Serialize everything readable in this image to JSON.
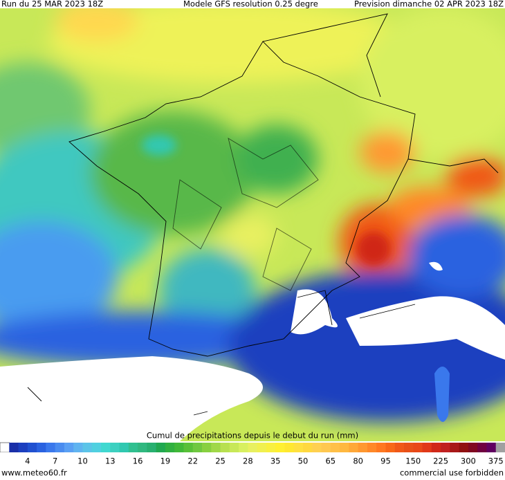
{
  "header": {
    "run": "Run du 25 MAR 2023 18Z",
    "model": "Modele GFS resolution 0.25 degre",
    "forecast": "Prevision dimanche 02 APR 2023 18Z"
  },
  "legend": {
    "title": "Cumul de precipitations depuis le debut du run (mm)",
    "ticks": [
      4,
      7,
      10,
      13,
      16,
      19,
      22,
      25,
      28,
      35,
      50,
      65,
      80,
      95,
      150,
      225,
      300,
      375
    ],
    "colors": [
      "#ffffff",
      "#1a2fa8",
      "#1c3fbf",
      "#2050d0",
      "#2a62e0",
      "#3a78ec",
      "#4a8cf0",
      "#5aa0f4",
      "#60b4f0",
      "#5cc4e8",
      "#50d0e0",
      "#40d8d0",
      "#3cd0c0",
      "#30c8b0",
      "#30c090",
      "#30b880",
      "#28b070",
      "#20a850",
      "#30b040",
      "#40b838",
      "#58c038",
      "#70c840",
      "#88d040",
      "#a0d848",
      "#b8e050",
      "#c8e858",
      "#d8f060",
      "#e8f060",
      "#f0f050",
      "#f8f040",
      "#fff030",
      "#ffe830",
      "#ffe040",
      "#ffd840",
      "#ffd050",
      "#ffc850",
      "#ffc048",
      "#ffb840",
      "#ffa838",
      "#ff9830",
      "#ff8828",
      "#ff7820",
      "#f86818",
      "#f05818",
      "#e85018",
      "#e84818",
      "#e03818",
      "#d02818",
      "#c02020",
      "#a81818",
      "#901010",
      "#800820",
      "#700040",
      "#600060",
      "#a0a0a0"
    ]
  },
  "footer": {
    "site": "www.meteo60.fr",
    "notice": "commercial use forbidden"
  }
}
